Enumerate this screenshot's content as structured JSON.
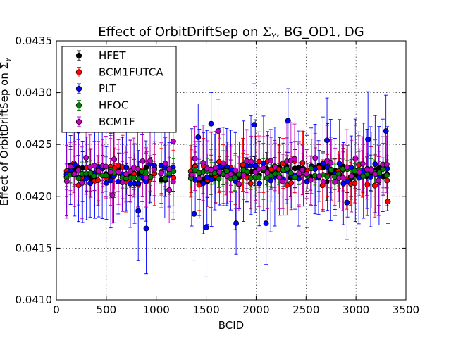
{
  "chart_data": {
    "type": "scatter",
    "title": "Effect of OrbitDriftSep on Σ_Y, BG_OD1, DG",
    "title_prefix": "Effect of OrbitDriftSep on ",
    "title_symbol": "Σ",
    "title_subscript": "Y",
    "title_suffix": ", BG_OD1, DG",
    "xlabel": "BCID",
    "ylabel": "Effect of OrbitDriftSep on Σ_Y",
    "xlim": [
      0,
      3500
    ],
    "ylim": [
      0.041,
      0.0435
    ],
    "x_ticks": [
      "0",
      "500",
      "1000",
      "1500",
      "2000",
      "2500",
      "3000",
      "3500"
    ],
    "y_ticks": [
      "0.0410",
      "0.0415",
      "0.0420",
      "0.0425",
      "0.0430",
      "0.0435"
    ],
    "grid": true,
    "legend_position": "top-left",
    "trains": [
      [
        100,
        1000
      ],
      [
        1050,
        1200
      ],
      [
        1350,
        3330
      ]
    ],
    "train_spacing": 40,
    "series": [
      {
        "name": "HFET",
        "color": "#000000",
        "center": 0.04222,
        "spread": 8e-05,
        "err": 0.00015,
        "outliers": []
      },
      {
        "name": "BCM1FUTCA",
        "color": "#ff0000",
        "center": 0.04222,
        "spread": 0.00012,
        "err": 0.00025,
        "outliers": [
          [
            3320,
            0.04195
          ],
          [
            1700,
            0.04225
          ]
        ]
      },
      {
        "name": "PLT",
        "color": "#0000ff",
        "center": 0.04222,
        "spread": 0.0001,
        "err": 0.0004,
        "outliers": [
          [
            820,
            0.04186
          ],
          [
            900,
            0.04169
          ],
          [
            1380,
            0.04183
          ],
          [
            1500,
            0.0417
          ],
          [
            1550,
            0.0427
          ],
          [
            1800,
            0.04174
          ],
          [
            1980,
            0.04269
          ],
          [
            2100,
            0.04174
          ],
          [
            2320,
            0.04273
          ],
          [
            2710,
            0.04254
          ],
          [
            3300,
            0.04263
          ],
          [
            1420,
            0.04257
          ],
          [
            3120,
            0.04255
          ],
          [
            2910,
            0.04194
          ]
        ]
      },
      {
        "name": "HFOC",
        "color": "#008000",
        "center": 0.04222,
        "spread": 5e-05,
        "err": 0.0001,
        "outliers": []
      },
      {
        "name": "BCM1F",
        "color": "#bf00bf",
        "center": 0.04225,
        "spread": 0.00013,
        "err": 0.0003,
        "outliers": [
          [
            1170,
            0.04253
          ],
          [
            1620,
            0.04263
          ],
          [
            1130,
            0.04206
          ],
          [
            560,
            0.04201
          ]
        ]
      }
    ]
  }
}
